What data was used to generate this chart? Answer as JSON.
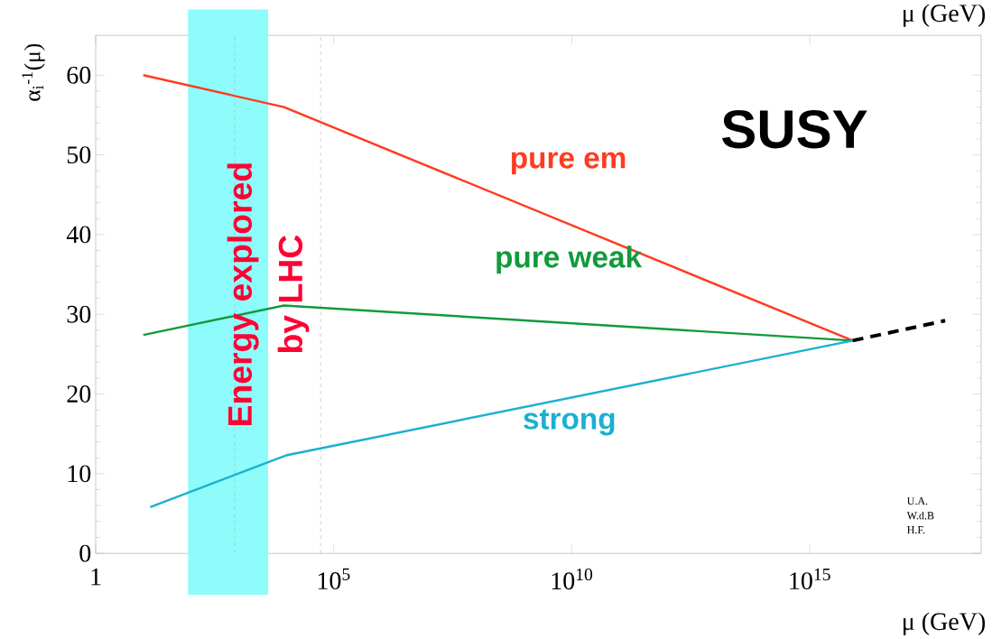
{
  "chart_data": {
    "type": "line",
    "xlabel": "μ (GeV)",
    "ylabel": "α$_{i}$$^{-1}$(μ)",
    "log": "x",
    "xlim": [
      1,
      4e+18
    ],
    "ylim": [
      0,
      65
    ],
    "xticks": [
      1,
      {
        "value": 100000.0,
        "label": "10$^{5}$"
      },
      {
        "value": 10000000000.0,
        "label": "10$^{10}$"
      },
      {
        "value": 1000000000000000.0,
        "label": "10$^{15}$"
      }
    ],
    "yticks": [
      0,
      10,
      20,
      30,
      40,
      50,
      60
    ],
    "grid": false,
    "marker": "none",
    "series": [
      {
        "name": "pure em",
        "color": "#ff3b1f",
        "x": [
          10,
          9000,
          8000000000000000.0
        ],
        "values": [
          60,
          56,
          26.7
        ]
      },
      {
        "name": "pure weak",
        "color": "#119a3c",
        "x": [
          10,
          9000,
          8000000000000000.0
        ],
        "values": [
          27.4,
          31.1,
          26.7
        ]
      },
      {
        "name": "strong",
        "color": "#1ab0d0",
        "x": [
          14,
          10000,
          8000000000000000.0
        ],
        "values": [
          5.8,
          12.3,
          26.7
        ]
      },
      {
        "color": "#000000",
        "line_style": "dashed",
        "x": [
          8000000000000000.0,
          7e+17
        ],
        "values": [
          26.7,
          29.2
        ]
      }
    ],
    "ref_lines": [
      {
        "axis": "x",
        "value": 830,
        "color": "#aaaaaa",
        "line_style": "dashed"
      },
      {
        "axis": "x",
        "value": 53000,
        "color": "#aaaaaa",
        "line_style": "dashed"
      }
    ],
    "bands": [
      {
        "axis": "x",
        "from": 87,
        "to": 4200,
        "label": "Energy explored by LHC",
        "color": "#8ffcfc"
      }
    ],
    "annotations": [
      "SUSY",
      "U.A.",
      "W.d.B",
      "H.F.",
      "μ (GeV)"
    ]
  }
}
